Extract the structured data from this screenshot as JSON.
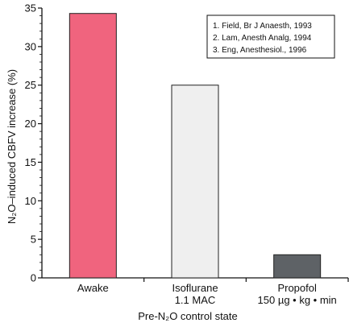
{
  "chart_data": {
    "type": "bar",
    "categories": [
      [
        "Awake"
      ],
      [
        "Isoflurane",
        "1.1 MAC"
      ],
      [
        "Propofol",
        "150 µg • kg • min"
      ]
    ],
    "values": [
      34.3,
      25.0,
      3.0
    ],
    "colors": [
      "#f0647e",
      "#efefef",
      "#5e6266"
    ],
    "ylabel": "N₂O–induced CBFV increase (%)",
    "xlabel": "Pre-N₂O control state",
    "ylim": [
      0,
      35
    ],
    "yticks": [
      0,
      5,
      10,
      15,
      20,
      25,
      30,
      35
    ],
    "grid": false,
    "legend": {
      "placement": "top-right",
      "entries": [
        "1. Field, Br J Anaesth, 1993",
        "2. Lam, Anesth Analg, 1994",
        "3. Eng, Anesthesiol., 1996"
      ]
    }
  }
}
